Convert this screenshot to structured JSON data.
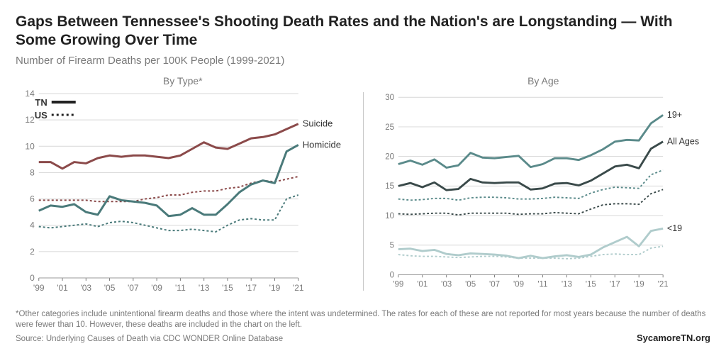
{
  "title": "Gaps Between Tennessee's Shooting Death Rates and the Nation's are Longstanding — With Some Growing Over Time",
  "subtitle": "Number of Firearm Deaths per 100K People (1999-2021)",
  "footnote": "*Other categories include unintentional firearm deaths and those where the intent was undetermined. The rates for each of these are not reported for most years because the number of deaths were fewer than 10. However, these deaths are included in the chart on the left.",
  "source": "Source: Underlying Causes of Death via CDC WONDER Online Database",
  "attribution": "SycamoreTN.org",
  "legend": {
    "tn": "TN",
    "us": "US"
  },
  "x_years": [
    1999,
    2000,
    2001,
    2002,
    2003,
    2004,
    2005,
    2006,
    2007,
    2008,
    2009,
    2010,
    2011,
    2012,
    2013,
    2014,
    2015,
    2016,
    2017,
    2018,
    2019,
    2020,
    2021
  ],
  "x_tick_labels": [
    "'99",
    "'01",
    "'03",
    "'05",
    "'07",
    "'09",
    "'11",
    "'13",
    "'15",
    "'17",
    "'19",
    "'21"
  ],
  "x_tick_years": [
    1999,
    2001,
    2003,
    2005,
    2007,
    2009,
    2011,
    2013,
    2015,
    2017,
    2019,
    2021
  ],
  "left_panel": {
    "title": "By Type*",
    "ylim": [
      0,
      14
    ],
    "yticks": [
      0,
      2,
      4,
      6,
      8,
      10,
      12,
      14
    ],
    "grid_color": "#d7d7d7",
    "series": {
      "suicide_tn": {
        "label": "Suicide",
        "color": "#8b4a4a",
        "width": 3,
        "dash": "none",
        "values": [
          8.8,
          8.8,
          8.3,
          8.8,
          8.7,
          9.1,
          9.3,
          9.2,
          9.3,
          9.3,
          9.2,
          9.1,
          9.3,
          9.8,
          10.3,
          9.9,
          9.8,
          10.2,
          10.6,
          10.7,
          10.9,
          11.3,
          11.7
        ]
      },
      "suicide_us": {
        "color": "#8b4a4a",
        "width": 2,
        "dash": "3,3",
        "values": [
          5.9,
          5.9,
          5.9,
          5.9,
          5.9,
          5.8,
          5.8,
          5.8,
          5.8,
          6.0,
          6.1,
          6.3,
          6.3,
          6.5,
          6.6,
          6.6,
          6.8,
          6.9,
          7.2,
          7.4,
          7.3,
          7.5,
          7.7
        ]
      },
      "homicide_tn": {
        "label": "Homicide",
        "color": "#4a7a7a",
        "width": 3,
        "dash": "none",
        "values": [
          5.1,
          5.5,
          5.4,
          5.6,
          5.0,
          4.8,
          6.2,
          5.9,
          5.8,
          5.7,
          5.5,
          4.7,
          4.8,
          5.3,
          4.8,
          4.8,
          5.6,
          6.5,
          7.1,
          7.4,
          7.2,
          9.6,
          10.1
        ]
      },
      "homicide_us": {
        "color": "#4a7a7a",
        "width": 2,
        "dash": "3,3",
        "values": [
          3.9,
          3.8,
          3.9,
          4.0,
          4.1,
          3.9,
          4.2,
          4.3,
          4.2,
          4.0,
          3.8,
          3.6,
          3.6,
          3.7,
          3.6,
          3.5,
          4.0,
          4.4,
          4.5,
          4.4,
          4.4,
          6.0,
          6.3
        ]
      }
    }
  },
  "right_panel": {
    "title": "By Age",
    "ylim": [
      0,
      30
    ],
    "yticks": [
      0,
      5,
      10,
      15,
      20,
      25,
      30
    ],
    "grid_color": "#d7d7d7",
    "series": {
      "adult_tn": {
        "label": "19+",
        "color": "#5a8a8a",
        "width": 3,
        "dash": "none",
        "values": [
          18.7,
          19.3,
          18.6,
          19.5,
          18.1,
          18.5,
          20.6,
          19.8,
          19.7,
          19.9,
          20.1,
          18.2,
          18.7,
          19.7,
          19.7,
          19.4,
          20.2,
          21.2,
          22.5,
          22.8,
          22.7,
          25.6,
          27.0
        ]
      },
      "all_tn": {
        "label": "All Ages",
        "color": "#3a4a4a",
        "width": 3,
        "dash": "none",
        "values": [
          15.0,
          15.5,
          14.8,
          15.6,
          14.3,
          14.5,
          16.2,
          15.6,
          15.5,
          15.6,
          15.6,
          14.4,
          14.6,
          15.4,
          15.5,
          15.1,
          15.9,
          17.1,
          18.3,
          18.6,
          18.0,
          21.3,
          22.5
        ]
      },
      "adult_us": {
        "color": "#5a8a8a",
        "width": 2,
        "dash": "3,3",
        "values": [
          12.8,
          12.6,
          12.7,
          12.9,
          12.9,
          12.6,
          13.0,
          13.1,
          13.1,
          13.0,
          12.8,
          12.8,
          12.9,
          13.1,
          13.0,
          12.9,
          13.8,
          14.4,
          14.8,
          14.7,
          14.6,
          16.9,
          17.7
        ]
      },
      "all_us": {
        "color": "#3a4a4a",
        "width": 2,
        "dash": "3,3",
        "values": [
          10.3,
          10.2,
          10.3,
          10.4,
          10.4,
          10.1,
          10.4,
          10.4,
          10.4,
          10.4,
          10.2,
          10.3,
          10.3,
          10.5,
          10.4,
          10.3,
          11.1,
          11.8,
          12.0,
          12.0,
          11.9,
          13.7,
          14.4
        ]
      },
      "youth_tn": {
        "label": "<19",
        "color": "#b0cccc",
        "width": 3,
        "dash": "none",
        "values": [
          4.3,
          4.4,
          4.0,
          4.2,
          3.5,
          3.3,
          3.6,
          3.5,
          3.4,
          3.2,
          2.8,
          3.2,
          2.8,
          3.1,
          3.3,
          3.0,
          3.4,
          4.6,
          5.5,
          6.4,
          4.8,
          7.4,
          7.8
        ]
      },
      "youth_us": {
        "color": "#b0cccc",
        "width": 2,
        "dash": "3,3",
        "values": [
          3.4,
          3.2,
          3.1,
          3.1,
          3.0,
          2.9,
          3.0,
          3.1,
          3.1,
          3.0,
          2.8,
          2.8,
          2.8,
          2.8,
          2.7,
          2.8,
          3.1,
          3.4,
          3.5,
          3.4,
          3.4,
          4.5,
          4.8
        ]
      }
    }
  },
  "label_fontsize": 13,
  "axis_fontsize": 12,
  "background_color": "#ffffff"
}
